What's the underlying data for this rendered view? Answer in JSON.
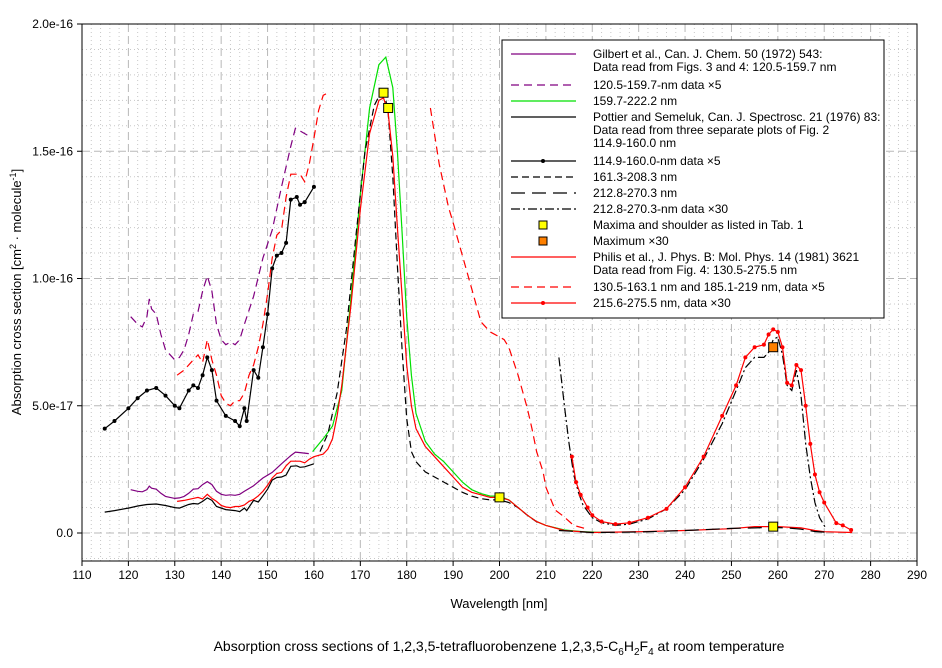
{
  "chart_data": {
    "type": "line",
    "title": "Absorption cross sections of 1,2,3,5-tetrafluorobenzene 1,2,3,5-C6H2F4 at room temperature",
    "title_parts": {
      "pre": "Absorption cross sections of 1,2,3,5-tetrafluorobenzene 1,2,3,5-C",
      "s1": "6",
      "m1": "H",
      "s2": "2",
      "m2": "F",
      "s3": "4",
      "post": " at room temperature"
    },
    "xlabel": "Wavelength [nm]",
    "ylabel": {
      "pre": "Absorption cross section [cm",
      "sup1": "2",
      "mid": " · molecule",
      "sup2": "-1",
      "post": "]"
    },
    "xlim": [
      110,
      290
    ],
    "ylim": [
      -1.1e-17,
      2e-16
    ],
    "y_unit_of_values": 1e-17,
    "x_ticks": [
      "110",
      "120",
      "130",
      "140",
      "150",
      "160",
      "170",
      "180",
      "190",
      "200",
      "210",
      "220",
      "230",
      "240",
      "250",
      "260",
      "270",
      "280",
      "290"
    ],
    "y_ticks": [
      {
        "value": 0,
        "label": "0.0"
      },
      {
        "value": 5,
        "label": "5.0e-17"
      },
      {
        "value": 10,
        "label": "1.0e-16"
      },
      {
        "value": 15,
        "label": "1.5e-16"
      },
      {
        "value": 20,
        "label": "2.0e-16"
      }
    ],
    "grid": true,
    "legend_position": "top-right",
    "series": [
      {
        "id": "gilbert_x5",
        "name": "120.5-159.7-nm data ×5",
        "color": "#800080",
        "dash": "8,5",
        "x": [
          120.5,
          122,
          123,
          124,
          124.5,
          125,
          126,
          127,
          128,
          130,
          131,
          132,
          133,
          134,
          135,
          136,
          137,
          138,
          139,
          140,
          141,
          142,
          143,
          144,
          145,
          147,
          149,
          151,
          153,
          155,
          156,
          157,
          158.9
        ],
        "y": [
          8.5,
          8.2,
          8.1,
          8.5,
          9.2,
          8.8,
          8.6,
          7.8,
          7.2,
          6.8,
          6.9,
          7.2,
          7.8,
          8.6,
          8.7,
          9.5,
          10.1,
          9.5,
          8.2,
          7.6,
          7.4,
          7.5,
          7.4,
          7.6,
          8.2,
          9.3,
          10.8,
          11.9,
          13.6,
          15.2,
          15.9,
          15.8,
          15.6
        ]
      },
      {
        "id": "gilbert",
        "name": "Gilbert et al., Can. J. Chem. 50 (1972) 543: Data read from Figs. 3 and 4: 120.5-159.7 nm",
        "color": "#800080",
        "dash": "",
        "derived_from": "gilbert_x5",
        "divide_by": 5
      },
      {
        "id": "pottier_x5",
        "name": "114.9-160.0-nm data ×5",
        "color": "#000000",
        "dash": "",
        "markers": "dot",
        "x": [
          114.9,
          117,
          120,
          122,
          124,
          126,
          128,
          130,
          131,
          133,
          134,
          135,
          136,
          137,
          138,
          139,
          141,
          143,
          144,
          145,
          145.5,
          147,
          148,
          149,
          150,
          151,
          152,
          153,
          154,
          155,
          156.3,
          157,
          158,
          160
        ],
        "y": [
          4.1,
          4.4,
          4.9,
          5.3,
          5.6,
          5.7,
          5.4,
          5.0,
          4.9,
          5.6,
          5.8,
          5.7,
          6.2,
          6.9,
          6.4,
          5.2,
          4.6,
          4.4,
          4.2,
          4.9,
          4.4,
          6.4,
          6.1,
          7.3,
          8.6,
          10.4,
          10.9,
          11.0,
          11.4,
          13.1,
          13.2,
          12.9,
          13.0,
          13.6
        ]
      },
      {
        "id": "pottier",
        "name": "Pottier and Semeluk, Can. J. Spectrosc. 21 (1976) 83: Data read from three separate plots of Fig. 2 114.9-160.0 nm",
        "color": "#000000",
        "dash": "",
        "derived_from": "pottier_x5",
        "divide_by": 5
      },
      {
        "id": "philis_x5_a",
        "name": "130.5-163.1 nm and 185.1-219 nm, data ×5",
        "color": "#ff0000",
        "dash": "8,5",
        "x": [
          130.5,
          132,
          134,
          135,
          136,
          137,
          138,
          139,
          140,
          141,
          142,
          143,
          144,
          145,
          146,
          147,
          148,
          149,
          150,
          151,
          152,
          153,
          154,
          155,
          156,
          157,
          158,
          159,
          160,
          161,
          162,
          163.1
        ],
        "y": [
          6.2,
          6.4,
          6.8,
          7.0,
          6.7,
          7.6,
          6.8,
          6.2,
          5.4,
          5.1,
          5.0,
          5.2,
          5.2,
          5.5,
          6.2,
          6.6,
          7.3,
          8.2,
          9.4,
          10.8,
          11.7,
          11.9,
          13.2,
          14.1,
          14.1,
          14.1,
          13.8,
          14.5,
          15.5,
          16.6,
          17.2,
          17.3
        ]
      },
      {
        "id": "philis_x5_b",
        "name": "130.5-163.1 nm and 185.1-219 nm, data ×5",
        "color": "#ff0000",
        "dash": "8,5",
        "in_legend": false,
        "x": [
          185.1,
          187,
          189,
          190,
          192,
          194,
          196,
          198,
          200,
          201,
          202,
          204,
          206,
          207,
          208,
          209.4,
          210,
          212,
          213.7,
          216,
          219
        ],
        "y": [
          16.7,
          14.5,
          12.8,
          12.2,
          10.9,
          9.6,
          8.3,
          7.9,
          7.7,
          7.6,
          7.3,
          6.2,
          4.9,
          4.1,
          3.2,
          2.4,
          1.8,
          0.9,
          0.67,
          0.3,
          0.15
        ]
      },
      {
        "id": "green",
        "name": "159.7-222.2 nm",
        "color": "#00e000",
        "dash": "",
        "x": [
          159.7,
          162,
          164,
          166,
          168,
          170,
          172,
          174,
          175.5,
          177,
          178,
          179,
          180,
          181,
          182,
          184,
          186,
          188,
          190,
          192,
          194,
          196,
          198,
          200,
          202,
          204,
          206,
          208,
          210,
          214,
          218,
          222.2
        ],
        "y": [
          3.2,
          3.7,
          4.2,
          5.6,
          9.3,
          13.3,
          16.7,
          18.4,
          18.7,
          17.5,
          15.0,
          11.8,
          8.5,
          6.2,
          4.7,
          3.6,
          3.1,
          2.8,
          2.4,
          2.0,
          1.7,
          1.55,
          1.45,
          1.45,
          1.3,
          1.0,
          0.7,
          0.45,
          0.3,
          0.12,
          0.05,
          0.02
        ]
      },
      {
        "id": "pottier_b",
        "name": "161.3-208.3 nm",
        "color": "#000000",
        "dash": "7,4",
        "x": [
          161.3,
          163,
          165,
          167,
          169,
          171,
          173,
          175,
          176,
          177,
          178,
          179,
          180,
          181,
          182,
          184,
          186,
          188,
          190,
          192,
          194,
          196,
          198,
          200,
          202,
          204,
          206,
          208.3
        ],
        "y": [
          3.2,
          3.9,
          5.5,
          8.0,
          11.6,
          15.0,
          16.8,
          17.5,
          16.5,
          14.0,
          10.5,
          7.2,
          4.5,
          3.2,
          2.8,
          2.4,
          2.2,
          2.0,
          1.8,
          1.6,
          1.45,
          1.35,
          1.3,
          1.3,
          1.2,
          1.0,
          0.7,
          0.4
        ]
      },
      {
        "id": "philis",
        "name": "Philis et al., J. Phys. B: Mol. Phys. 14 (1981) 3621 Data read from Fig. 4: 130.5-275.5 nm",
        "color": "#ff0000",
        "dash": "",
        "x": [
          130.5,
          132,
          134,
          135,
          136,
          137,
          138,
          139,
          140,
          141,
          142,
          143,
          144,
          145,
          146,
          147,
          148,
          149,
          150,
          151,
          152,
          153,
          154,
          155,
          156,
          157,
          158,
          159,
          160,
          162,
          163,
          164,
          165,
          166,
          168,
          170,
          172,
          174,
          175,
          176,
          177,
          178,
          179,
          180,
          181,
          182,
          184,
          186,
          188,
          190,
          192,
          194,
          196,
          198,
          200,
          202,
          204,
          206,
          208,
          210,
          214,
          220,
          230,
          240,
          250,
          255,
          260,
          265,
          268,
          270,
          276
        ],
        "y": [
          1.24,
          1.28,
          1.36,
          1.4,
          1.34,
          1.52,
          1.36,
          1.24,
          1.08,
          1.02,
          1.0,
          1.04,
          1.04,
          1.1,
          1.24,
          1.32,
          1.46,
          1.64,
          1.88,
          2.16,
          2.34,
          2.38,
          2.64,
          2.82,
          2.82,
          2.82,
          2.76,
          2.9,
          3.0,
          3.1,
          3.3,
          3.7,
          4.6,
          5.8,
          9.0,
          12.7,
          15.7,
          17.0,
          17.1,
          16.5,
          14.8,
          12.0,
          9.3,
          6.6,
          5.0,
          4.1,
          3.4,
          3.0,
          2.6,
          2.2,
          1.8,
          1.6,
          1.5,
          1.4,
          1.4,
          1.3,
          1.0,
          0.7,
          0.45,
          0.3,
          0.1,
          0.02,
          0.05,
          0.1,
          0.17,
          0.25,
          0.25,
          0.2,
          0.1,
          0.05,
          0.02
        ]
      },
      {
        "id": "pottier_c",
        "name": "212.8-270.3 nm",
        "color": "#000000",
        "dash": "14,7",
        "x": [
          212.8,
          220,
          230,
          240,
          250,
          255,
          258,
          262,
          265,
          268,
          270.3
        ],
        "y": [
          0.1,
          0.02,
          0.04,
          0.1,
          0.18,
          0.2,
          0.22,
          0.2,
          0.15,
          0.06,
          0.03
        ]
      },
      {
        "id": "pottier_c_x30",
        "name": "212.8-270.3-nm data ×30",
        "color": "#000000",
        "dash": "9,3,2,3",
        "x": [
          212.8,
          214,
          215,
          216,
          217,
          218,
          220,
          222,
          225,
          228,
          232,
          236,
          240,
          244,
          248,
          251,
          253,
          255,
          257,
          258,
          259,
          260,
          261,
          262,
          263,
          264,
          265,
          266,
          267,
          268,
          269,
          270.3
        ],
        "y": [
          6.9,
          5.0,
          3.5,
          2.3,
          1.6,
          1.1,
          0.6,
          0.4,
          0.3,
          0.35,
          0.55,
          0.95,
          1.7,
          2.9,
          4.3,
          5.6,
          6.5,
          6.9,
          6.9,
          7.1,
          7.6,
          7.7,
          7.0,
          5.8,
          5.6,
          6.4,
          5.4,
          3.5,
          2.2,
          1.2,
          0.6,
          0.2
        ]
      },
      {
        "id": "philis_x30",
        "name": "215.6-275.5 nm, data ×30",
        "color": "#ff0000",
        "dash": "",
        "markers": "dot",
        "x": [
          215.6,
          216.5,
          217.5,
          219,
          220,
          222,
          225,
          228,
          232,
          236,
          240,
          244,
          248,
          251,
          253,
          255,
          257,
          258,
          259,
          260,
          261,
          262,
          263,
          264,
          265,
          266,
          267,
          268,
          269,
          270,
          272.6,
          274,
          275.8
        ],
        "y": [
          3.0,
          2.0,
          1.5,
          1.0,
          0.7,
          0.45,
          0.35,
          0.4,
          0.6,
          0.95,
          1.8,
          3.0,
          4.6,
          5.8,
          6.9,
          7.3,
          7.4,
          7.8,
          8.0,
          7.9,
          7.3,
          5.9,
          5.8,
          6.6,
          6.4,
          5.0,
          3.5,
          2.3,
          1.6,
          1.2,
          0.39,
          0.3,
          0.12
        ]
      }
    ],
    "markers": [
      {
        "name": "Maxima and shoulder as listed in Tab. 1",
        "color": "#ffff00",
        "points": [
          [
            175.0,
            17.3
          ],
          [
            176.0,
            16.7
          ],
          [
            200.0,
            1.4
          ],
          [
            259.0,
            0.25
          ]
        ]
      },
      {
        "name": "Maximum ×30",
        "color": "#ff8000",
        "points": [
          [
            259.0,
            7.3
          ]
        ]
      }
    ],
    "legend": [
      {
        "lines": [
          "Gilbert  et al., Can. J. Chem. 50 (1972) 543:",
          "Data read from Figs. 3 and 4: 120.5-159.7 nm"
        ],
        "color": "#800080",
        "dash": ""
      },
      {
        "lines": [
          "120.5-159.7-nm data ×5"
        ],
        "color": "#800080",
        "dash": "8,5"
      },
      {
        "lines": [
          "159.7-222.2 nm"
        ],
        "color": "#00e000",
        "dash": ""
      },
      {
        "lines": [
          "Pottier and Semeluk, Can. J. Spectrosc. 21 (1976) 83:",
          "Data read from three separate plots of Fig. 2",
          "114.9-160.0 nm"
        ],
        "color": "#000000",
        "dash": ""
      },
      {
        "lines": [
          "114.9-160.0-nm data ×5"
        ],
        "color": "#000000",
        "dash": "",
        "dot": true
      },
      {
        "lines": [
          "161.3-208.3 nm"
        ],
        "color": "#000000",
        "dash": "7,4"
      },
      {
        "lines": [
          "212.8-270.3 nm"
        ],
        "color": "#000000",
        "dash": "14,7"
      },
      {
        "lines": [
          "212.8-270.3-nm data ×30"
        ],
        "color": "#000000",
        "dash": "9,3,2,3"
      },
      {
        "lines": [
          "Maxima and shoulder as listed in Tab. 1"
        ],
        "square": "#ffff00"
      },
      {
        "lines": [
          "Maximum ×30"
        ],
        "square": "#ff8000"
      },
      {
        "lines": [
          "Philis et al., J. Phys. B: Mol. Phys. 14 (1981) 3621",
          "Data read from Fig. 4: 130.5-275.5 nm"
        ],
        "color": "#ff0000",
        "dash": ""
      },
      {
        "lines": [
          "130.5-163.1 nm and 185.1-219 nm, data ×5"
        ],
        "color": "#ff0000",
        "dash": "8,5"
      },
      {
        "lines": [
          "215.6-275.5 nm, data ×30"
        ],
        "color": "#ff0000",
        "dash": "",
        "dot": true
      }
    ]
  }
}
